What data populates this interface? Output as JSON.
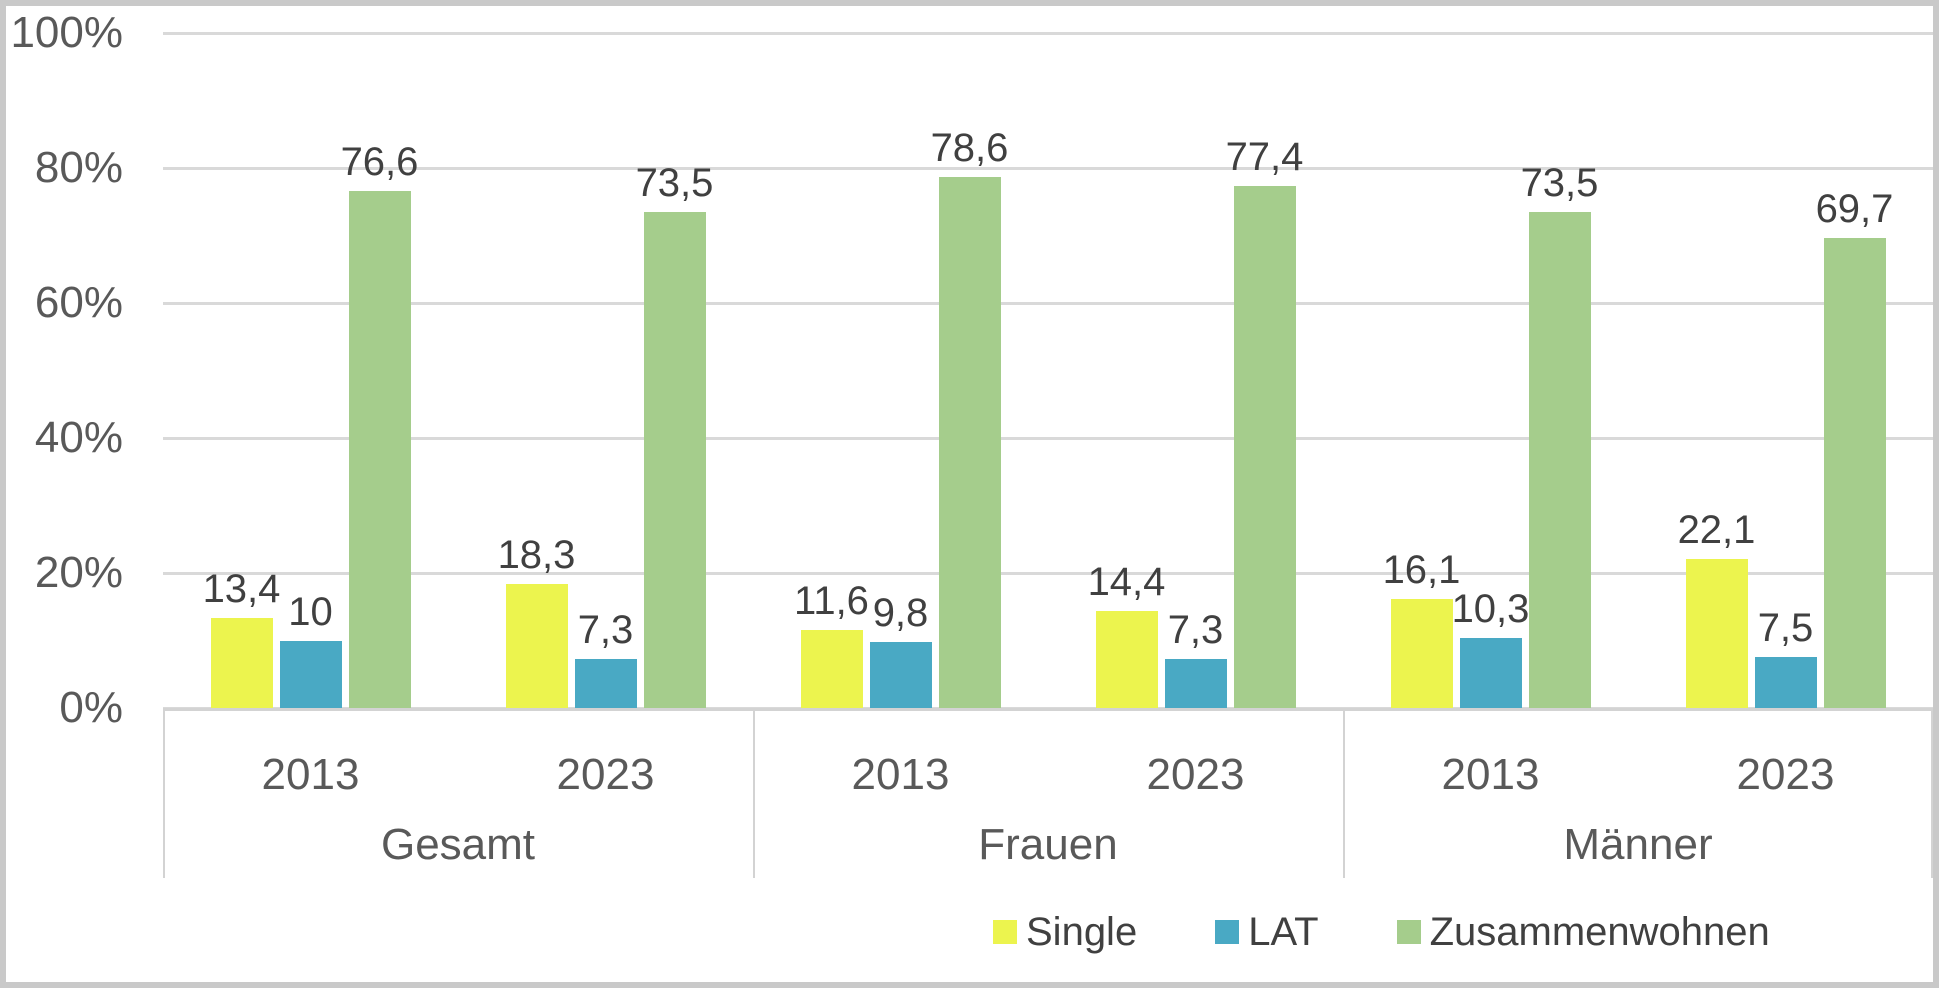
{
  "chart_data": {
    "type": "bar",
    "title": "",
    "unit": "%",
    "ylim": [
      0,
      100
    ],
    "yticks": [
      "0%",
      "20%",
      "40%",
      "60%",
      "80%",
      "100%"
    ],
    "grid": true,
    "legend_position": "bottom",
    "group_labels": [
      "Gesamt",
      "Frauen",
      "Männer"
    ],
    "categories": [
      "2013",
      "2023",
      "2013",
      "2023",
      "2013",
      "2023"
    ],
    "series": [
      {
        "name": "Single",
        "color": "#ECF44E",
        "values": [
          13.4,
          18.3,
          11.6,
          14.4,
          16.1,
          22.1
        ],
        "labels": [
          "13,4",
          "18,3",
          "11,6",
          "14,4",
          "16,1",
          "22,1"
        ]
      },
      {
        "name": "LAT",
        "color": "#49A9C4",
        "values": [
          10,
          7.3,
          9.8,
          7.3,
          10.3,
          7.5
        ],
        "labels": [
          "10",
          "7,3",
          "9,8",
          "7,3",
          "10,3",
          "7,5"
        ]
      },
      {
        "name": "Zusammenwohnen",
        "color": "#A5CD8C",
        "values": [
          76.6,
          73.5,
          78.6,
          77.4,
          73.5,
          69.7
        ],
        "labels": [
          "76,6",
          "73,5",
          "78,6",
          "77,4",
          "73,5",
          "69,7"
        ]
      }
    ],
    "colors": {
      "gridline": "#D9D9D9",
      "axis_line": "#D3D3D3",
      "axis_text": "#595959",
      "data_label_text": "#404040",
      "frame_border": "#C9C9C9",
      "background": "#FFFFFF"
    }
  }
}
